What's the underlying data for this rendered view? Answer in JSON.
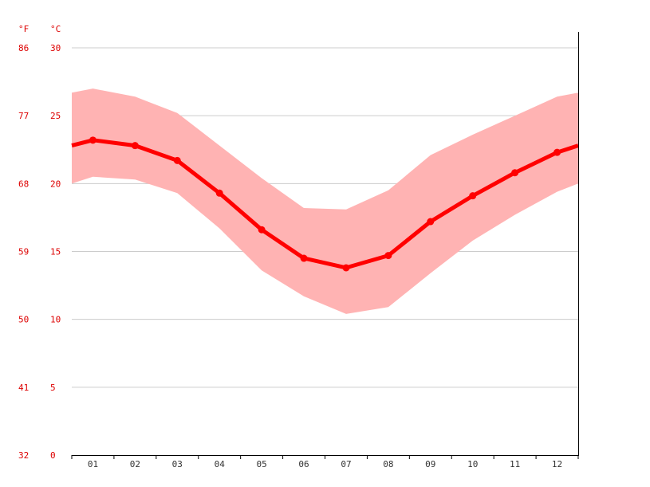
{
  "chart_data": {
    "type": "line",
    "categories": [
      "01",
      "02",
      "03",
      "04",
      "05",
      "06",
      "07",
      "08",
      "09",
      "10",
      "11",
      "12"
    ],
    "series": [
      {
        "values": [
          23.2,
          22.8,
          21.7,
          19.3,
          16.6,
          14.5,
          13.8,
          14.7,
          17.2,
          19.1,
          20.8,
          22.3
        ],
        "low": [
          20.5,
          20.3,
          19.3,
          16.7,
          13.6,
          11.7,
          10.4,
          10.9,
          13.4,
          15.8,
          17.7,
          19.4
        ],
        "high": [
          27.0,
          26.4,
          25.2,
          22.8,
          20.4,
          18.2,
          18.1,
          19.5,
          22.1,
          23.6,
          25.0,
          26.4
        ]
      }
    ],
    "left_edge": {
      "value": 22.8,
      "low": 20.0,
      "high": 26.7
    },
    "right_edge": {
      "value": 22.8,
      "low": 20.0,
      "high": 26.7
    },
    "y_left_unit": "°F",
    "y_right_unit": "°C",
    "y_ticks_c": [
      "0",
      "5",
      "10",
      "15",
      "20",
      "25",
      "30"
    ],
    "y_ticks_f": [
      "32",
      "41",
      "50",
      "59",
      "68",
      "77",
      "86"
    ],
    "ylim": [
      0,
      30
    ],
    "grid": true,
    "colors": {
      "line": "#ff0000",
      "band": "#ffb3b3",
      "labels": "#dd0000"
    }
  }
}
